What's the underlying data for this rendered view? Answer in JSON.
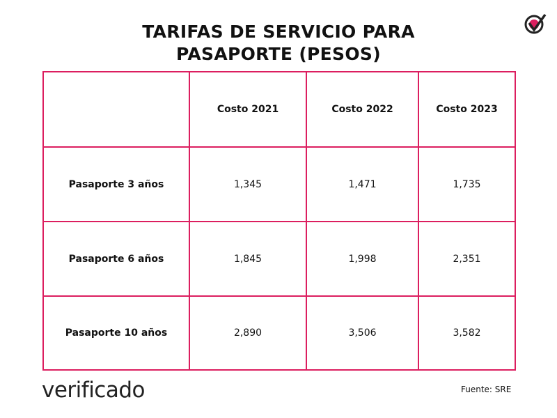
{
  "header": {
    "title": "TARIFAS DE SERVICIO PARA PASAPORTE (PESOS)"
  },
  "table": {
    "columns": [
      "Costo 2021",
      "Costo 2022",
      "Costo 2023"
    ],
    "rows": [
      {
        "label": "Pasaporte 3 años",
        "values": [
          "1,345",
          "1,471",
          "1,735"
        ]
      },
      {
        "label": "Pasaporte 6 años",
        "values": [
          "1,845",
          "1,998",
          "2,351"
        ]
      },
      {
        "label": "Pasaporte 10 años",
        "values": [
          "2,890",
          "3,506",
          "3,582"
        ]
      }
    ]
  },
  "footer": {
    "brand": "verificado",
    "source": "Fuente: SRE"
  }
}
